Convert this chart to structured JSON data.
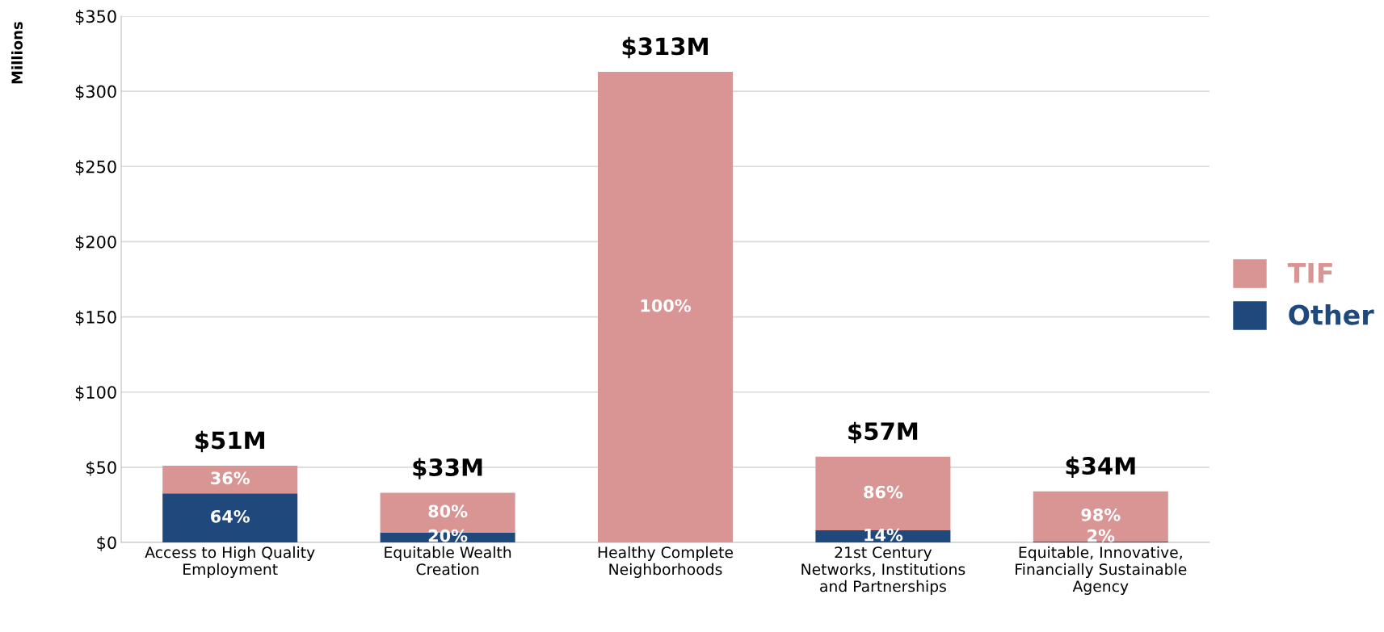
{
  "chart_data": {
    "type": "bar",
    "stacked": true,
    "ylabel": "Millions",
    "categories": [
      "Access to High Quality\nEmployment",
      "Equitable Wealth\nCreation",
      "Healthy Complete\nNeighborhoods",
      "21st Century\nNetworks, Institutions\nand Partnerships",
      "Equitable, Innovative,\nFinancially Sustainable\nAgency"
    ],
    "series": [
      {
        "name": "Other",
        "color": "#1f497d",
        "values": [
          32.6,
          6.6,
          0,
          8,
          0.7
        ]
      },
      {
        "name": "TIF",
        "color": "#d99594",
        "values": [
          18.4,
          26.4,
          313,
          49,
          33.3
        ]
      }
    ],
    "annotations": [
      "64%",
      "36%",
      "20%",
      "80%",
      "100%",
      "14%",
      "86%",
      "2%",
      "98%"
    ],
    "totals": [
      "$51M",
      "$33M",
      "$313M",
      "$57M",
      "$34M"
    ],
    "ylim": [
      0,
      350
    ],
    "yticks": [
      {
        "value": 0,
        "label": "$0"
      },
      {
        "value": 50,
        "label": "$50"
      },
      {
        "value": 100,
        "label": "$100"
      },
      {
        "value": 150,
        "label": "$150"
      },
      {
        "value": 200,
        "label": "$200"
      },
      {
        "value": 250,
        "label": "$250"
      },
      {
        "value": 300,
        "label": "$300"
      },
      {
        "value": 350,
        "label": "$350"
      }
    ],
    "grid": "y",
    "legend": "right"
  }
}
